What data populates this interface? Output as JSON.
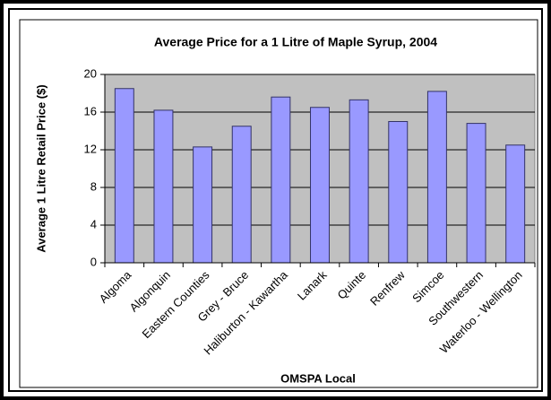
{
  "chart_data": {
    "type": "bar",
    "title": "Average Price for a 1 Litre of Maple Syrup, 2004",
    "x_label": "OMSPA Local",
    "y_label": "Average 1 Litre Retail Price ($)",
    "categories": [
      "Algoma",
      "Algonquin",
      "Eastern Counties",
      "Grey - Bruce",
      "Haliburton - Kawartha",
      "Lanark",
      "Quinte",
      "Renfrew",
      "Simcoe",
      "Southwestern",
      "Waterloo - Wellington"
    ],
    "values": [
      18.5,
      16.2,
      12.3,
      14.5,
      17.6,
      16.5,
      17.3,
      15.0,
      18.2,
      14.8,
      12.5
    ],
    "color": "#9999ff",
    "ylim": [
      0,
      20
    ],
    "yticks": [
      0,
      4,
      8,
      12,
      16,
      20
    ],
    "grid": true
  }
}
